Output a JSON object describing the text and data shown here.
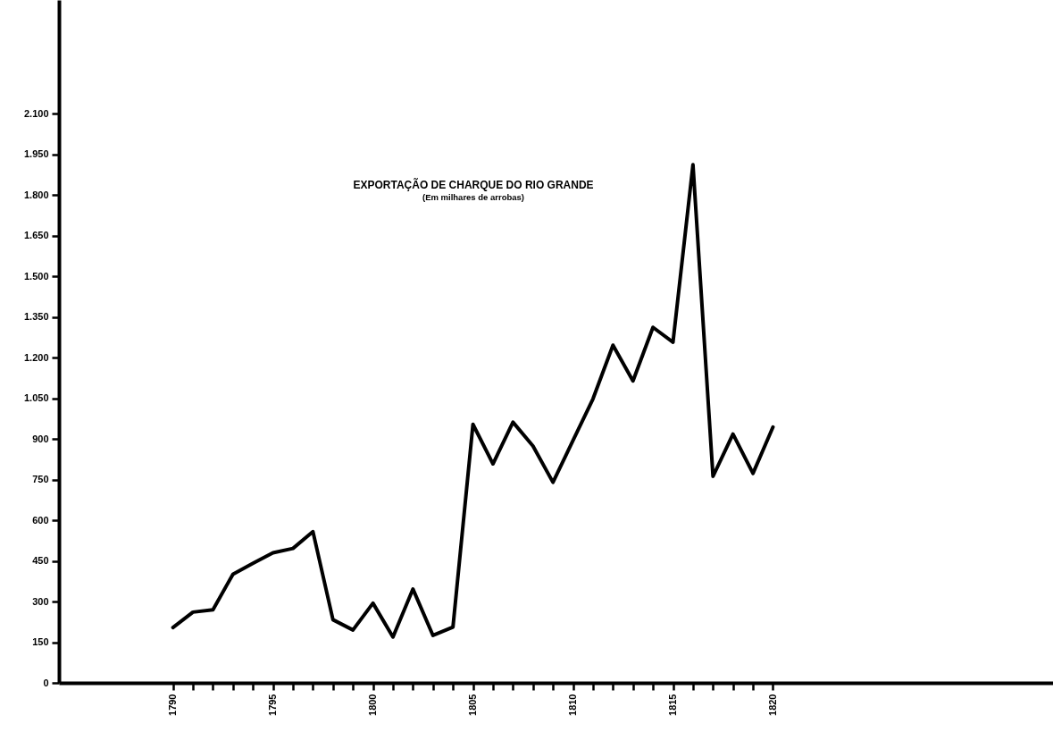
{
  "chart_data": {
    "type": "line",
    "title": "EXPORTAÇÃO DE CHARQUE DO RIO GRANDE",
    "subtitle": "(Em milhares de arrobas)",
    "x": [
      1790,
      1791,
      1792,
      1793,
      1794,
      1795,
      1796,
      1797,
      1798,
      1799,
      1800,
      1801,
      1802,
      1803,
      1804,
      1805,
      1806,
      1807,
      1808,
      1809,
      1810,
      1811,
      1812,
      1813,
      1814,
      1815,
      1816,
      1817,
      1818,
      1819,
      1820
    ],
    "series": [
      {
        "color": "#000000",
        "values": [
          204,
          261,
          270,
          401,
          441,
          480,
          496,
          558,
          233,
          195,
          294,
          169,
          346,
          175,
          206,
          954,
          808,
          962,
          874,
          740,
          894,
          1048,
          1246,
          1114,
          1312,
          1257,
          1912,
          762,
          918,
          773,
          944
        ]
      }
    ],
    "xlim": [
      1784.3,
      1834
    ],
    "xticks": [
      1790,
      {
        "value": 1791,
        "label": null
      },
      {
        "value": 1792,
        "label": null
      },
      {
        "value": 1793,
        "label": null
      },
      {
        "value": 1794,
        "label": null
      },
      1795,
      {
        "value": 1796,
        "label": null
      },
      {
        "value": 1797,
        "label": null
      },
      {
        "value": 1798,
        "label": null
      },
      {
        "value": 1799,
        "label": null
      },
      1800,
      {
        "value": 1801,
        "label": null
      },
      {
        "value": 1802,
        "label": null
      },
      {
        "value": 1803,
        "label": null
      },
      {
        "value": 1804,
        "label": null
      },
      1805,
      {
        "value": 1806,
        "label": null
      },
      {
        "value": 1807,
        "label": null
      },
      {
        "value": 1808,
        "label": null
      },
      {
        "value": 1809,
        "label": null
      },
      1810,
      {
        "value": 1811,
        "label": null
      },
      {
        "value": 1812,
        "label": null
      },
      {
        "value": 1813,
        "label": null
      },
      {
        "value": 1814,
        "label": null
      },
      1815,
      {
        "value": 1816,
        "label": null
      },
      {
        "value": 1817,
        "label": null
      },
      {
        "value": 1818,
        "label": null
      },
      {
        "value": 1819,
        "label": null
      },
      1820
    ],
    "ylim": [
      0,
      2520
    ],
    "yticks": [
      0,
      150,
      300,
      450,
      600,
      750,
      900,
      {
        "value": 1050,
        "label": "1.050"
      },
      {
        "value": 1200,
        "label": "1.200"
      },
      {
        "value": 1350,
        "label": "1.350"
      },
      {
        "value": 1500,
        "label": "1.500"
      },
      {
        "value": 1650,
        "label": "1.650"
      },
      {
        "value": 1800,
        "label": "1.800"
      },
      {
        "value": 1950,
        "label": "1.950"
      },
      {
        "value": 2100,
        "label": "2.100"
      }
    ]
  }
}
